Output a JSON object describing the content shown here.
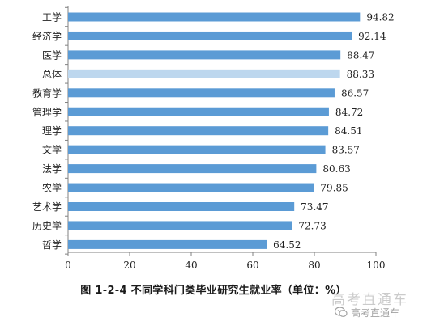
{
  "chart_data": {
    "type": "bar",
    "orientation": "horizontal",
    "categories": [
      "工学",
      "经济学",
      "医学",
      "总体",
      "教育学",
      "管理学",
      "理学",
      "文学",
      "法学",
      "农学",
      "艺术学",
      "历史学",
      "哲学"
    ],
    "values": [
      94.82,
      92.14,
      88.47,
      88.33,
      86.57,
      84.72,
      84.51,
      83.57,
      80.63,
      79.85,
      73.47,
      72.73,
      64.52
    ],
    "value_labels": [
      "94.82",
      "92.14",
      "88.47",
      "88.33",
      "86.57",
      "84.72",
      "84.51",
      "83.57",
      "80.63",
      "79.85",
      "73.47",
      "72.73",
      "64.52"
    ],
    "highlight_category": "总体",
    "xlim": [
      0,
      100
    ],
    "x_ticks": [
      0,
      20,
      40,
      60,
      80,
      100
    ],
    "x_tick_labels": [
      "0",
      "20",
      "40",
      "60",
      "80",
      "100"
    ],
    "grid": false,
    "colors": {
      "bar": "#5b9bd5",
      "highlight_bar": "#bdd7ee",
      "axis": "#808080"
    }
  },
  "caption": "图 1-2-4  不同学科门类毕业研究生就业率（单位：%）",
  "watermark": {
    "line1": "高考直通车",
    "line2": "高考直通车",
    "icon": "wechat-icon"
  }
}
